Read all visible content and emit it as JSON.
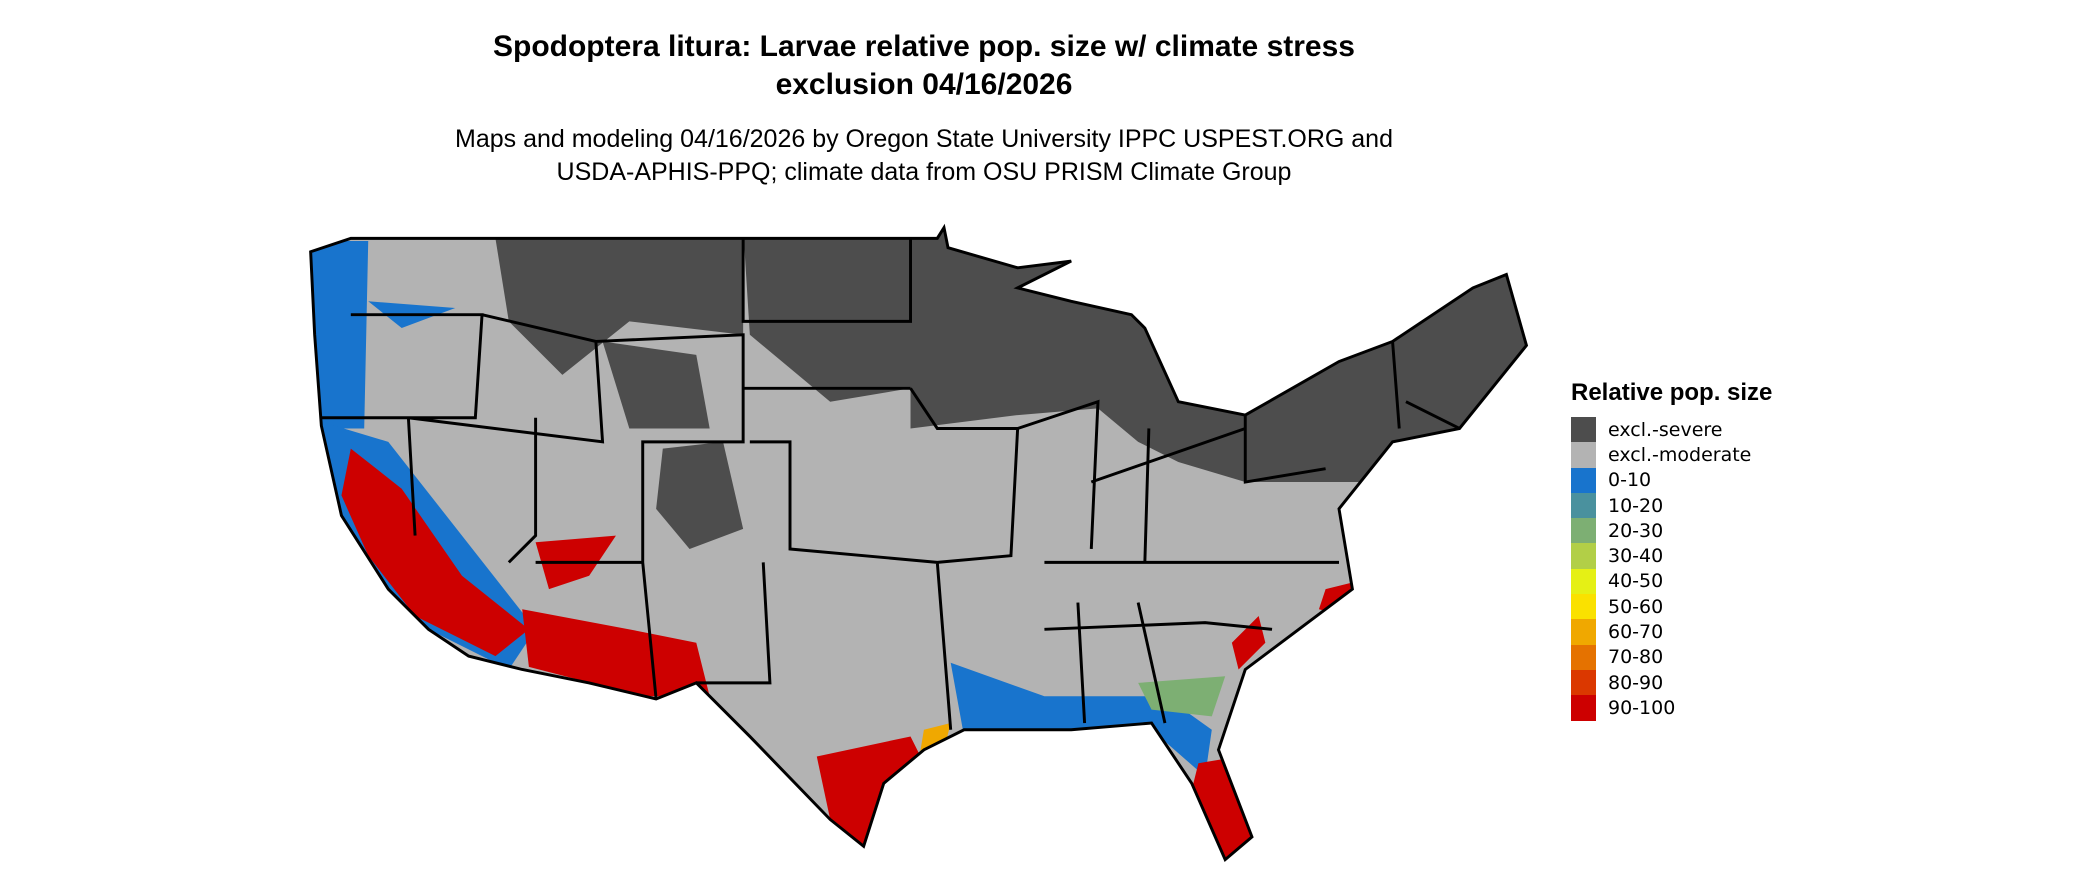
{
  "title": {
    "line1": "Spodoptera litura: Larvae relative pop. size w/ climate stress",
    "line2": "exclusion 04/16/2026"
  },
  "subtitle": {
    "line1": "Maps and modeling 04/16/2026 by Oregon State University IPPC USPEST.ORG and",
    "line2": "USDA-APHIS-PPQ; climate data from OSU PRISM Climate Group"
  },
  "legend": {
    "title": "Relative pop. size",
    "items": [
      {
        "label": "excl.-severe",
        "color": "#4d4d4d"
      },
      {
        "label": "excl.-moderate",
        "color": "#b3b3b3"
      },
      {
        "label": "0-10",
        "color": "#1874cd"
      },
      {
        "label": "10-20",
        "color": "#4a919e"
      },
      {
        "label": "20-30",
        "color": "#7daf73"
      },
      {
        "label": "30-40",
        "color": "#b2cf47"
      },
      {
        "label": "40-50",
        "color": "#e5f015"
      },
      {
        "label": "50-60",
        "color": "#fae100"
      },
      {
        "label": "60-70",
        "color": "#f0a800"
      },
      {
        "label": "70-80",
        "color": "#e57200"
      },
      {
        "label": "80-90",
        "color": "#db3800"
      },
      {
        "label": "90-100",
        "color": "#cd0000"
      }
    ]
  }
}
